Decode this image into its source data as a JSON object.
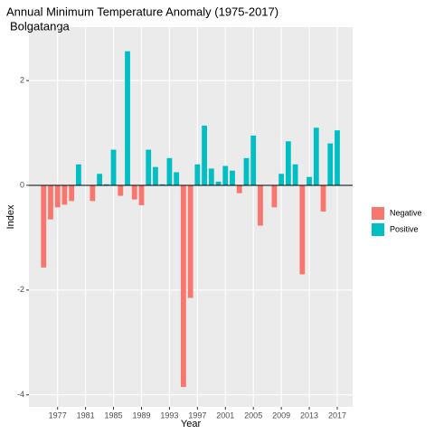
{
  "chart_data": {
    "type": "bar",
    "title": "Annual Minimum Temperature Anomaly (1975-2017)",
    "subtitle": "Bolgatanga",
    "x_label": "Year",
    "y_label": "Index",
    "x": [
      1975,
      1976,
      1977,
      1978,
      1979,
      1980,
      1981,
      1982,
      1983,
      1984,
      1985,
      1986,
      1987,
      1988,
      1989,
      1990,
      1991,
      1992,
      1993,
      1994,
      1995,
      1996,
      1997,
      1998,
      1999,
      2000,
      2001,
      2002,
      2003,
      2004,
      2005,
      2006,
      2007,
      2008,
      2009,
      2010,
      2011,
      2012,
      2013,
      2014,
      2015,
      2016,
      2017
    ],
    "series": [
      {
        "name": "Negative",
        "color": "#F8766D",
        "values": [
          -1.57,
          -0.65,
          -0.42,
          -0.37,
          -0.3,
          null,
          null,
          -0.3,
          null,
          null,
          null,
          -0.2,
          null,
          -0.27,
          -0.38,
          null,
          null,
          null,
          null,
          null,
          -3.85,
          -2.15,
          null,
          null,
          null,
          null,
          null,
          null,
          -0.15,
          null,
          null,
          -0.77,
          null,
          -0.42,
          null,
          null,
          null,
          -1.7,
          null,
          null,
          -0.5,
          null,
          null
        ]
      },
      {
        "name": "Positive",
        "color": "#00BFC4",
        "values": [
          null,
          null,
          null,
          null,
          null,
          0.4,
          0.0,
          null,
          0.22,
          0.02,
          0.68,
          null,
          2.56,
          null,
          null,
          0.68,
          0.35,
          0.02,
          0.52,
          0.25,
          null,
          null,
          0.4,
          1.14,
          0.32,
          0.07,
          0.37,
          0.28,
          null,
          0.52,
          0.95,
          null,
          0.0,
          null,
          0.22,
          0.84,
          0.4,
          null,
          0.16,
          1.1,
          null,
          0.8,
          1.05
        ]
      }
    ],
    "xlim": [
      1972.9,
      2019.2
    ],
    "xticks": [
      1977,
      1981,
      1985,
      1989,
      1993,
      1997,
      2001,
      2005,
      2009,
      2013,
      2017
    ],
    "ylim": [
      -4.23,
      3.02
    ],
    "yticks": [
      -4,
      -2,
      0,
      2
    ],
    "grid": true,
    "legend": "right"
  }
}
